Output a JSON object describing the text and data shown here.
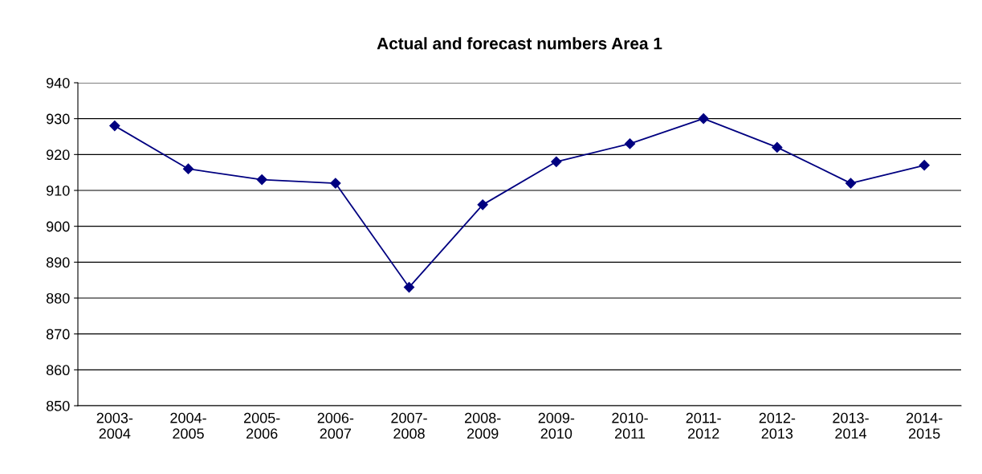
{
  "chart_data": {
    "type": "line",
    "title": "Actual and forecast numbers Area 1",
    "categories": [
      "2003-\n2004",
      "2004-\n2005",
      "2005-\n2006",
      "2006-\n2007",
      "2007-\n2008",
      "2008-\n2009",
      "2009-\n2010",
      "2010-\n2011",
      "2011-\n2012",
      "2012-\n2013",
      "2013-\n2014",
      "2014-\n2015"
    ],
    "series": [
      {
        "color": "#000080",
        "values": [
          928,
          916,
          913,
          912,
          883,
          906,
          918,
          923,
          930,
          922,
          912,
          917
        ]
      }
    ],
    "ylim": [
      850,
      940
    ],
    "yticks": [
      850,
      860,
      870,
      880,
      890,
      900,
      910,
      920,
      930,
      940
    ],
    "grid": "y",
    "marker": "diamond",
    "line_style": "solid"
  }
}
